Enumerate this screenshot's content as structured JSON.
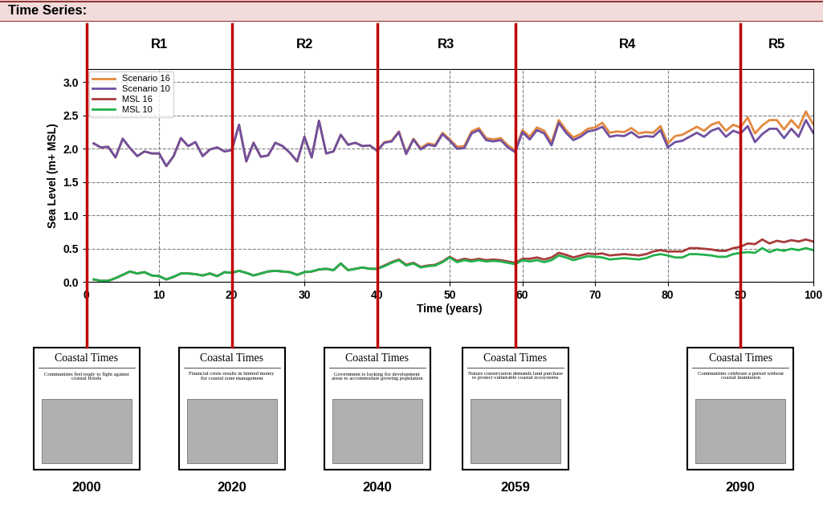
{
  "header": "Time Series:",
  "chart_data": {
    "type": "line",
    "x_label": "Time (years)",
    "y_label": "Sea Level (m+ MSL)",
    "xlim": [
      0,
      100
    ],
    "xticks": [
      0,
      10,
      20,
      30,
      40,
      50,
      60,
      70,
      80,
      90,
      100
    ],
    "ylim": [
      0,
      3.2
    ],
    "yticks": [
      {
        "value": 0,
        "label": "0.0"
      },
      {
        "value": 0.5,
        "label": "0.5"
      },
      {
        "value": 1,
        "label": "1.0"
      },
      {
        "value": 1.5,
        "label": "1.5"
      },
      {
        "value": 2,
        "label": "2.0"
      },
      {
        "value": 2.5,
        "label": "2.5"
      },
      {
        "value": 3,
        "label": "3.0"
      }
    ],
    "grid": true,
    "legend": "upper left",
    "x": [
      1,
      2,
      3,
      4,
      5,
      6,
      7,
      8,
      9,
      10,
      11,
      12,
      13,
      14,
      15,
      16,
      17,
      18,
      19,
      20,
      21,
      22,
      23,
      24,
      25,
      26,
      27,
      28,
      29,
      30,
      31,
      32,
      33,
      34,
      35,
      36,
      37,
      38,
      39,
      40,
      41,
      42,
      43,
      44,
      45,
      46,
      47,
      48,
      49,
      50,
      51,
      52,
      53,
      54,
      55,
      56,
      57,
      58,
      59,
      60,
      61,
      62,
      63,
      64,
      65,
      66,
      67,
      68,
      69,
      70,
      71,
      72,
      73,
      74,
      75,
      76,
      77,
      78,
      79,
      80,
      81,
      82,
      83,
      84,
      85,
      86,
      87,
      88,
      89,
      90,
      91,
      92,
      93,
      94,
      95,
      96,
      97,
      98,
      99,
      100
    ],
    "series": [
      {
        "name": "Scenario 16",
        "color": "#e3893f",
        "line_style": "solid",
        "values": [
          2.08,
          2.02,
          2.03,
          1.87,
          2.15,
          2.01,
          1.89,
          1.96,
          1.93,
          1.93,
          1.74,
          1.89,
          2.16,
          2.04,
          2.1,
          1.89,
          1.99,
          2.02,
          1.96,
          1.98,
          2.36,
          1.81,
          2.09,
          1.88,
          1.9,
          2.09,
          2.04,
          1.94,
          1.81,
          2.18,
          1.87,
          2.42,
          1.93,
          1.96,
          2.21,
          2.06,
          2.09,
          2.04,
          2.05,
          1.97,
          2.1,
          2.12,
          2.26,
          1.93,
          2.15,
          2.01,
          2.08,
          2.06,
          2.24,
          2.14,
          2.03,
          2.04,
          2.26,
          2.31,
          2.16,
          2.14,
          2.16,
          2.05,
          1.98,
          2.28,
          2.18,
          2.32,
          2.27,
          2.09,
          2.43,
          2.28,
          2.17,
          2.22,
          2.3,
          2.32,
          2.39,
          2.24,
          2.26,
          2.25,
          2.31,
          2.23,
          2.25,
          2.24,
          2.34,
          2.08,
          2.19,
          2.21,
          2.27,
          2.33,
          2.27,
          2.36,
          2.4,
          2.27,
          2.36,
          2.32,
          2.47,
          2.23,
          2.35,
          2.43,
          2.43,
          2.29,
          2.43,
          2.31,
          2.56,
          2.37
        ]
      },
      {
        "name": "Scenario 10",
        "color": "#7050a0",
        "line_style": "solid",
        "values": [
          2.08,
          2.02,
          2.03,
          1.87,
          2.15,
          2.01,
          1.89,
          1.96,
          1.93,
          1.93,
          1.74,
          1.89,
          2.16,
          2.04,
          2.1,
          1.89,
          1.99,
          2.02,
          1.96,
          1.98,
          2.36,
          1.81,
          2.09,
          1.88,
          1.9,
          2.09,
          2.04,
          1.94,
          1.81,
          2.18,
          1.87,
          2.42,
          1.93,
          1.96,
          2.21,
          2.06,
          2.09,
          2.04,
          2.05,
          1.97,
          2.09,
          2.11,
          2.25,
          1.92,
          2.14,
          1.99,
          2.06,
          2.04,
          2.22,
          2.12,
          2.0,
          2.01,
          2.23,
          2.28,
          2.13,
          2.11,
          2.13,
          2.02,
          1.95,
          2.25,
          2.14,
          2.28,
          2.23,
          2.05,
          2.39,
          2.24,
          2.13,
          2.18,
          2.26,
          2.28,
          2.33,
          2.18,
          2.2,
          2.19,
          2.25,
          2.17,
          2.19,
          2.18,
          2.28,
          2.02,
          2.1,
          2.12,
          2.18,
          2.24,
          2.18,
          2.27,
          2.31,
          2.18,
          2.27,
          2.23,
          2.34,
          2.1,
          2.22,
          2.3,
          2.3,
          2.16,
          2.3,
          2.18,
          2.43,
          2.24
        ]
      },
      {
        "name": "MSL 16",
        "color": "#a83c3c",
        "line_style": "solid",
        "values": [
          0.04,
          0.02,
          0.02,
          0.06,
          0.11,
          0.16,
          0.13,
          0.15,
          0.1,
          0.09,
          0.04,
          0.08,
          0.13,
          0.13,
          0.12,
          0.1,
          0.13,
          0.09,
          0.15,
          0.14,
          0.17,
          0.14,
          0.1,
          0.13,
          0.16,
          0.17,
          0.16,
          0.15,
          0.11,
          0.15,
          0.16,
          0.19,
          0.2,
          0.18,
          0.28,
          0.18,
          0.2,
          0.22,
          0.2,
          0.2,
          0.25,
          0.3,
          0.34,
          0.26,
          0.29,
          0.23,
          0.25,
          0.26,
          0.31,
          0.38,
          0.32,
          0.35,
          0.33,
          0.35,
          0.33,
          0.34,
          0.33,
          0.31,
          0.29,
          0.35,
          0.35,
          0.37,
          0.34,
          0.37,
          0.44,
          0.41,
          0.37,
          0.4,
          0.43,
          0.42,
          0.43,
          0.4,
          0.41,
          0.42,
          0.41,
          0.4,
          0.42,
          0.46,
          0.48,
          0.46,
          0.46,
          0.46,
          0.51,
          0.51,
          0.5,
          0.49,
          0.47,
          0.47,
          0.51,
          0.53,
          0.58,
          0.57,
          0.64,
          0.58,
          0.62,
          0.6,
          0.63,
          0.61,
          0.64,
          0.61
        ]
      },
      {
        "name": "MSL 10",
        "color": "#22b14c",
        "line_style": "solid",
        "values": [
          0.04,
          0.02,
          0.02,
          0.06,
          0.11,
          0.16,
          0.13,
          0.15,
          0.1,
          0.09,
          0.04,
          0.08,
          0.13,
          0.13,
          0.12,
          0.1,
          0.13,
          0.09,
          0.15,
          0.14,
          0.17,
          0.14,
          0.1,
          0.13,
          0.16,
          0.17,
          0.16,
          0.15,
          0.11,
          0.15,
          0.16,
          0.19,
          0.2,
          0.18,
          0.28,
          0.18,
          0.2,
          0.22,
          0.2,
          0.2,
          0.24,
          0.29,
          0.33,
          0.25,
          0.28,
          0.22,
          0.24,
          0.25,
          0.3,
          0.37,
          0.3,
          0.33,
          0.31,
          0.33,
          0.31,
          0.32,
          0.31,
          0.29,
          0.27,
          0.33,
          0.31,
          0.33,
          0.3,
          0.33,
          0.4,
          0.37,
          0.33,
          0.36,
          0.39,
          0.38,
          0.37,
          0.34,
          0.35,
          0.36,
          0.35,
          0.34,
          0.36,
          0.4,
          0.42,
          0.4,
          0.37,
          0.37,
          0.42,
          0.42,
          0.41,
          0.4,
          0.38,
          0.38,
          0.42,
          0.44,
          0.45,
          0.44,
          0.51,
          0.45,
          0.49,
          0.47,
          0.5,
          0.48,
          0.51,
          0.48
        ]
      }
    ],
    "regions": [
      "R1",
      "R2",
      "R3",
      "R4",
      "R5"
    ],
    "events": [
      {
        "time": 0,
        "year": "2000",
        "newspaper": "Coastal Times",
        "headline": "Communities feel ready to fight against coastal floods"
      },
      {
        "time": 20,
        "year": "2020",
        "newspaper": "Coastal Times",
        "headline": "Financial crisis results in limited money for coastal zone management"
      },
      {
        "time": 40,
        "year": "2040",
        "newspaper": "Coastal Times",
        "headline": "Government is looking for development areas to accommodate growing population"
      },
      {
        "time": 59,
        "year": "2059",
        "newspaper": "Coastal Times",
        "headline": "Nature conservation demands land purchase to protect vulnerable coastal ecosystems"
      },
      {
        "time": 90,
        "year": "2090",
        "newspaper": "Coastal Times",
        "headline": "Communities celebrate a period without coastal inundation"
      }
    ]
  }
}
